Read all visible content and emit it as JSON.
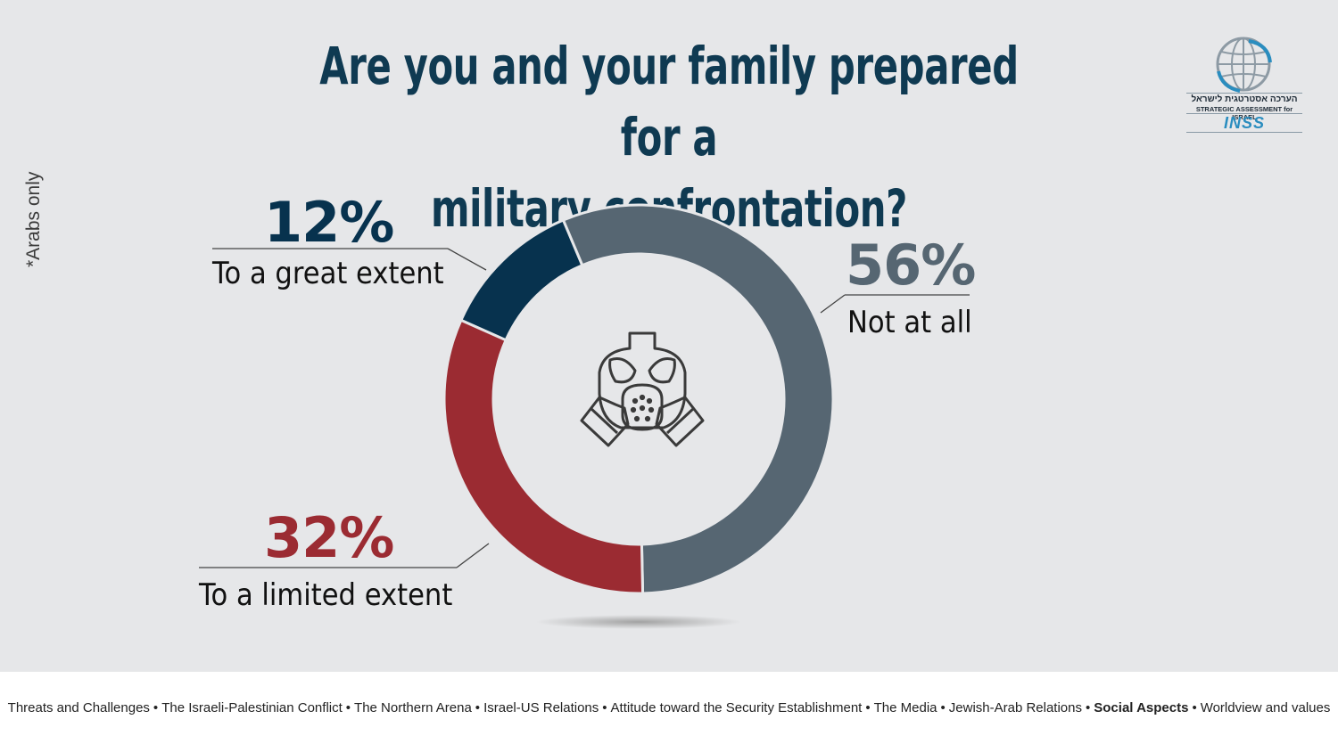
{
  "title_lines": [
    "Are you and your family prepared for a",
    "military confrontation?"
  ],
  "side_note": "*Arabs only",
  "logo": {
    "hebrew": "הערכה אסטרטגית לישראל",
    "english": "STRATEGIC ASSESSMENT for ISRAEL",
    "brand": "INSS"
  },
  "center_icon": "gas-mask-icon",
  "colors": {
    "great": "#07324e",
    "limited": "#9b2b32",
    "not_at_all": "#566672",
    "title": "#0f3a52"
  },
  "chart_data": {
    "type": "pie",
    "subtype": "donut",
    "title": "Are you and your family prepared for a military confrontation?",
    "categories": [
      "To a great extent",
      "Not at all",
      "To a limited extent"
    ],
    "values": [
      12,
      56,
      32
    ],
    "labels": [
      "12%",
      "56%",
      "32%"
    ],
    "unit": "%",
    "legend": "none (direct labels)"
  },
  "footer": {
    "items": [
      {
        "label": "Threats and Challenges",
        "active": false
      },
      {
        "label": "The Israeli-Palestinian Conflict",
        "active": false
      },
      {
        "label": "The Northern  Arena",
        "active": false
      },
      {
        "label": "Israel-US Relations",
        "active": false
      },
      {
        "label": "Attitude toward the Security Establishment",
        "active": false
      },
      {
        "label": "The Media",
        "active": false
      },
      {
        "label": "Jewish-Arab Relations",
        "active": false
      },
      {
        "label": "Social Aspects",
        "active": true
      },
      {
        "label": "Worldview and values",
        "active": false
      }
    ],
    "separator": "•"
  }
}
